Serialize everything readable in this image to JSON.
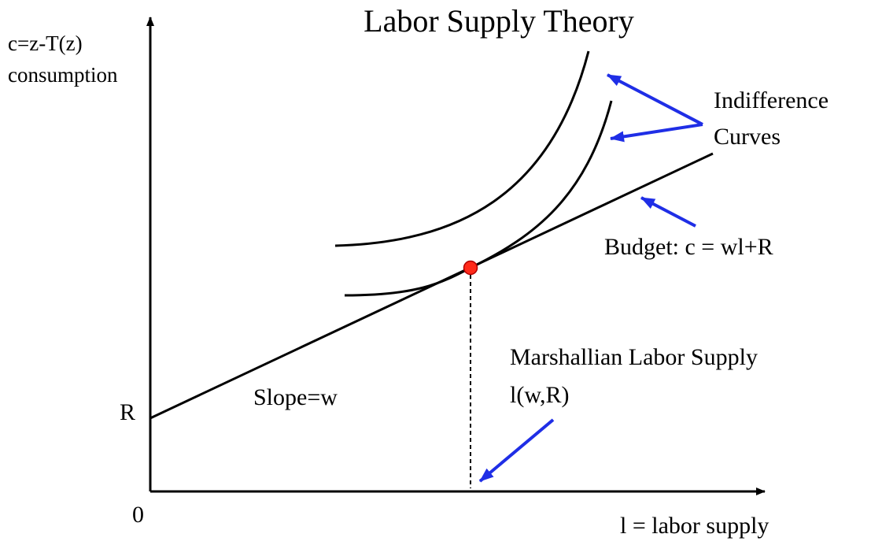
{
  "title": "Labor Supply Theory",
  "y_axis": {
    "line1": "c=z-T(z)",
    "line2": "consumption"
  },
  "x_axis": {
    "label": "l = labor supply"
  },
  "origin_label": "0",
  "intercept_label": "R",
  "slope_label": "Slope=w",
  "indifference": {
    "line1": "Indifference",
    "line2": "Curves"
  },
  "budget_label": "Budget: c = wl+R",
  "marshallian": {
    "line1": "Marshallian Labor Supply",
    "line2": "l(w,R)"
  },
  "colors": {
    "axis": "#000000",
    "arrow": "#1f2ee6",
    "point": "#ff2a1a",
    "point_stroke": "#b00000"
  }
}
